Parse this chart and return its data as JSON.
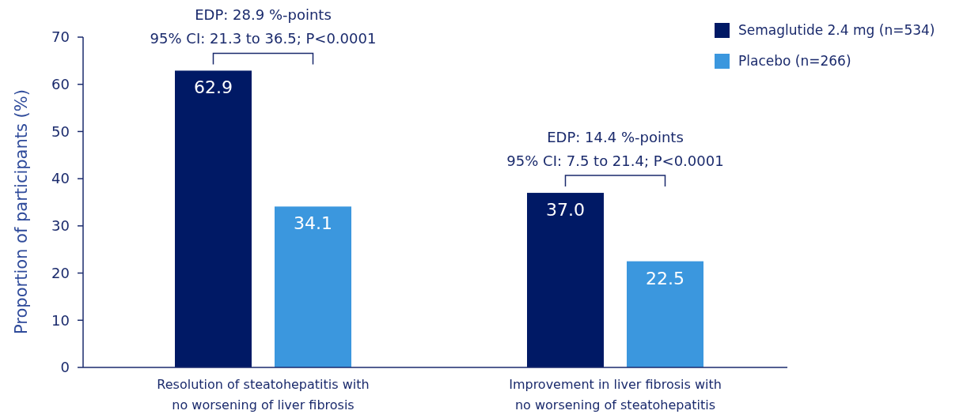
{
  "chart_data": {
    "type": "bar",
    "ylabel": "Proportion of participants (%)",
    "categories": [
      "Resolution of steatohepatitis with\nno worsening of liver fibrosis",
      "Improvement in liver fibrosis with\nno worsening of steatohepatitis"
    ],
    "series": [
      {
        "name": "Semaglutide 2.4 mg (n=534)",
        "color": "#001965",
        "values": [
          62.9,
          37.0
        ]
      },
      {
        "name": "Placebo (n=266)",
        "color": "#3b97de",
        "values": [
          34.1,
          22.5
        ]
      }
    ],
    "value_labels": [
      [
        "62.9",
        "37.0"
      ],
      [
        "34.1",
        "22.5"
      ]
    ],
    "ylim": [
      0,
      70
    ],
    "yticks": [
      0,
      10,
      20,
      30,
      40,
      50,
      60,
      70
    ],
    "annotations": [
      "EDP: 28.9 %-points\n95% CI: 21.3 to 36.5; P<0.0001",
      "EDP: 14.4 %-points\n95% CI: 7.5 to 21.4; P<0.0001"
    ],
    "legend": "top right",
    "grid": false
  }
}
